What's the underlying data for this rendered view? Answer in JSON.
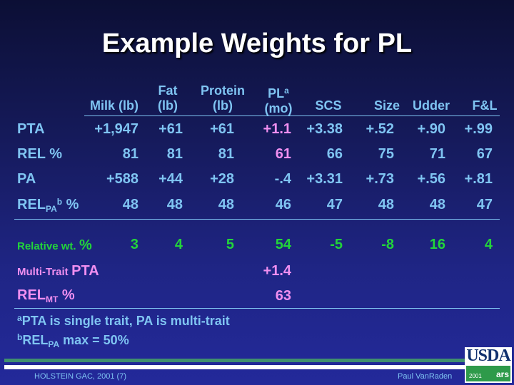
{
  "title": "Example Weights for PL",
  "headers": {
    "milk": [
      "",
      "Milk (lb)"
    ],
    "fat": [
      "Fat",
      "(lb)"
    ],
    "protein": [
      "Protein",
      "(lb)"
    ],
    "pl": [
      "PL",
      "(mo)"
    ],
    "pl_sup": "a",
    "scs": "SCS",
    "size": "Size",
    "udder": "Udder",
    "fl": "F&L"
  },
  "rows": [
    {
      "label": "PTA",
      "values": [
        "+1,947",
        "+61",
        "+61",
        "+1.1",
        "+3.38",
        "+.52",
        "+.90",
        "+.99"
      ]
    },
    {
      "label": "REL %",
      "values": [
        "81",
        "81",
        "81",
        "61",
        "66",
        "75",
        "71",
        "67"
      ]
    },
    {
      "label": "PA",
      "values": [
        "+588",
        "+44",
        "+28",
        "-.4",
        "+3.31",
        "+.73",
        "+.56",
        "+.81"
      ]
    },
    {
      "label_main": "REL",
      "label_sub": "PA",
      "label_sup": "b",
      "label_tail": " %",
      "values": [
        "48",
        "48",
        "48",
        "46",
        "47",
        "48",
        "48",
        "47"
      ]
    }
  ],
  "relative_wt": {
    "label_small": "Relative wt.",
    "label_pct": "%",
    "values": [
      "3",
      "4",
      "5",
      "54",
      "-5",
      "-8",
      "16",
      "4"
    ]
  },
  "multi_trait": {
    "label_small": "Multi-Trait",
    "label_big": "PTA",
    "value": "+1.4"
  },
  "rel_mt": {
    "label_main": "REL",
    "label_sub": "MT",
    "label_tail": " %",
    "value": "63"
  },
  "footnotes": [
    {
      "sup": "a",
      "text": "PTA is single trait, PA is multi-trait"
    },
    {
      "sup": "b",
      "main": "REL",
      "sub": "PA",
      "text": " max = 50%"
    }
  ],
  "footer": {
    "left": "HOLSTEIN GAC, 2001 (7)",
    "right": "Paul VanRaden"
  },
  "logo": {
    "text": "USDA",
    "year": "2001",
    "ars": "ars"
  },
  "colors": {
    "text_blue": "#7fc4f2",
    "pink": "#f08ff0",
    "green": "#22d43a",
    "footer_green_bar": "#3f8f6e"
  }
}
